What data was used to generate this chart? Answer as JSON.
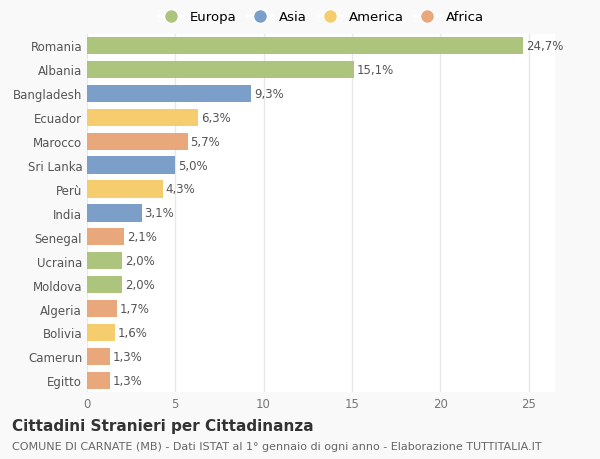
{
  "countries": [
    "Romania",
    "Albania",
    "Bangladesh",
    "Ecuador",
    "Marocco",
    "Sri Lanka",
    "Perù",
    "India",
    "Senegal",
    "Ucraina",
    "Moldova",
    "Algeria",
    "Bolivia",
    "Camerun",
    "Egitto"
  ],
  "values": [
    24.7,
    15.1,
    9.3,
    6.3,
    5.7,
    5.0,
    4.3,
    3.1,
    2.1,
    2.0,
    2.0,
    1.7,
    1.6,
    1.3,
    1.3
  ],
  "labels": [
    "24,7%",
    "15,1%",
    "9,3%",
    "6,3%",
    "5,7%",
    "5,0%",
    "4,3%",
    "3,1%",
    "2,1%",
    "2,0%",
    "2,0%",
    "1,7%",
    "1,6%",
    "1,3%",
    "1,3%"
  ],
  "continents": [
    "Europa",
    "Europa",
    "Asia",
    "America",
    "Africa",
    "Asia",
    "America",
    "Asia",
    "Africa",
    "Europa",
    "Europa",
    "Africa",
    "America",
    "Africa",
    "Africa"
  ],
  "colors": {
    "Europa": "#adc47d",
    "Asia": "#7b9fc9",
    "America": "#f5cc6e",
    "Africa": "#e8a87c"
  },
  "legend_order": [
    "Europa",
    "Asia",
    "America",
    "Africa"
  ],
  "title": "Cittadini Stranieri per Cittadinanza",
  "subtitle": "COMUNE DI CARNATE (MB) - Dati ISTAT al 1° gennaio di ogni anno - Elaborazione TUTTITALIA.IT",
  "xlim": [
    0,
    26.5
  ],
  "xticks": [
    0,
    5,
    10,
    15,
    20,
    25
  ],
  "background_color": "#f9f9f9",
  "bar_background": "#ffffff",
  "grid_color": "#e8e8e8",
  "title_fontsize": 11,
  "subtitle_fontsize": 8,
  "label_fontsize": 8.5,
  "tick_fontsize": 8.5,
  "legend_fontsize": 9.5
}
